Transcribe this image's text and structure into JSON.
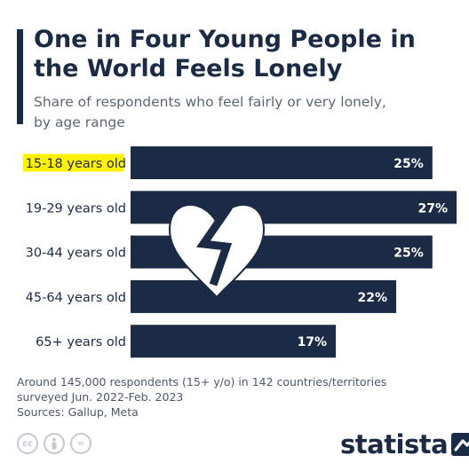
{
  "header": {
    "title": "One in Four Young People in the World Feels Lonely",
    "subtitle": "Share of respondents who feel fairly or very lonely, by age range"
  },
  "chart_data": {
    "type": "bar",
    "orientation": "horizontal",
    "categories": [
      "15-18 years old",
      "19-29 years old",
      "30-44 years old",
      "45-64 years old",
      "65+ years old"
    ],
    "values": [
      25,
      27,
      25,
      22,
      17
    ],
    "value_labels": [
      "25%",
      "27%",
      "25%",
      "22%",
      "17%"
    ],
    "highlighted_category": "15-18 years old",
    "xlim": [
      0,
      27
    ],
    "grid": false,
    "colors": {
      "bar": "#1b2a45",
      "highlight": "#fff200",
      "bar_label": "#ffffff",
      "decoration": "#ffffff"
    },
    "decoration_icon": "broken-heart-icon"
  },
  "footer": {
    "note_line1": "Around 145,000 respondents (15+ y/o) in 142 countries/territories",
    "note_line2": "surveyed Jun. 2022-Feb. 2023",
    "sources": "Sources: Gallup, Meta"
  },
  "license": [
    {
      "icon": "creative-commons-icon",
      "text": "cc"
    },
    {
      "icon": "attribution-icon",
      "text": ""
    },
    {
      "icon": "no-derivatives-icon",
      "text": "="
    }
  ],
  "brand": {
    "name": "statista",
    "icon": "statista-logo-icon"
  }
}
